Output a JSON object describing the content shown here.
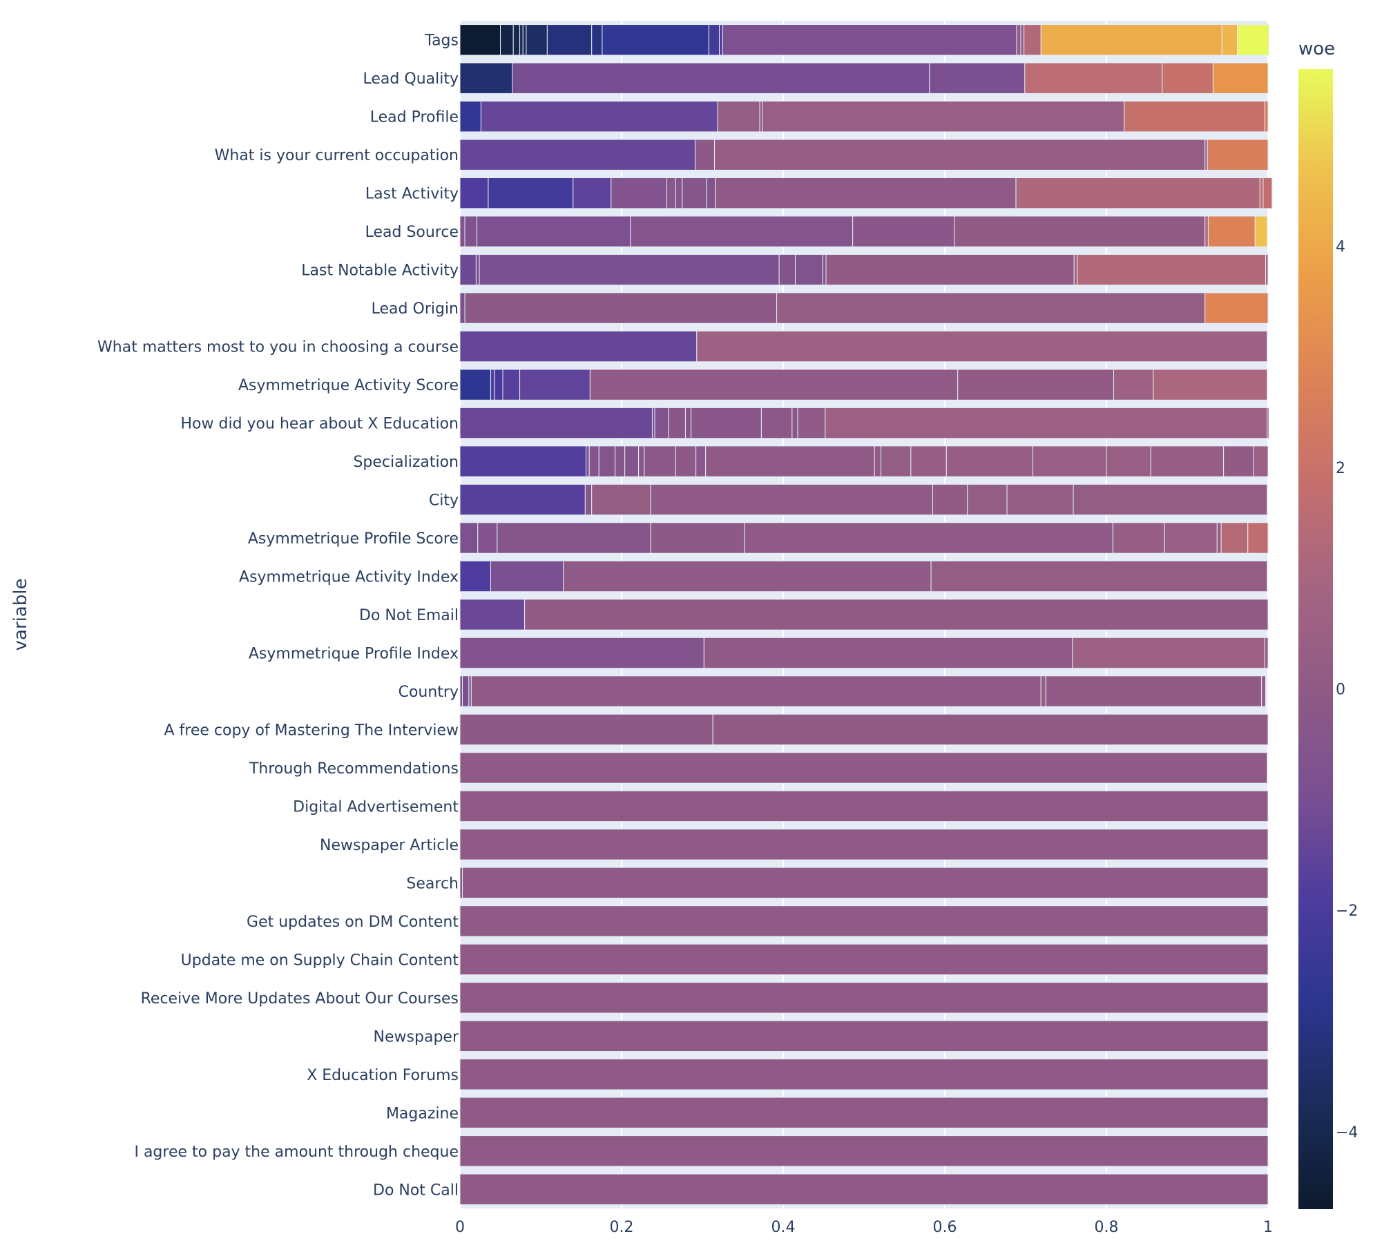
{
  "chart_data": {
    "type": "bar",
    "orientation": "horizontal-stacked",
    "ylabel": "variable",
    "xlim": [
      0,
      1
    ],
    "x_ticks": [
      "0",
      "0.2",
      "0.4",
      "0.6",
      "0.8",
      "1"
    ],
    "x_tick_values": [
      0,
      0.2,
      0.4,
      0.6,
      0.8,
      1
    ],
    "colorbar": {
      "title": "woe",
      "range": [
        -4.7,
        5.6
      ],
      "ticks": [
        "−4",
        "−2",
        "0",
        "2",
        "4"
      ],
      "tick_values": [
        -4,
        -2,
        0,
        2,
        4
      ],
      "colorscale": [
        "#0d1a2e",
        "#1b2c5a",
        "#2c3690",
        "#4e3c9e",
        "#7a4f92",
        "#8f5a85",
        "#a46582",
        "#c56f6d",
        "#dd8257",
        "#ec9e48",
        "#efc04e",
        "#e8fa5b"
      ]
    },
    "categories": [
      "Tags",
      "Lead Quality",
      "Lead Profile",
      "What is your current occupation",
      "Last Activity",
      "Lead Source",
      "Last Notable Activity",
      "Lead Origin",
      "What matters most to you in choosing a course",
      "Asymmetrique Activity Score",
      "How did you hear about X Education",
      "Specialization",
      "City",
      "Asymmetrique Profile Score",
      "Asymmetrique Activity Index",
      "Do Not Email",
      "Asymmetrique Profile Index",
      "Country",
      "A free copy of Mastering The Interview",
      "Through Recommendations",
      "Digital Advertisement",
      "Newspaper Article",
      "Search",
      "Get updates on DM Content",
      "Update me on Supply Chain Content",
      "Receive More Updates About Our Courses",
      "Newspaper",
      "X Education Forums",
      "Magazine",
      "I agree to pay the amount through cheque",
      "Do Not Call"
    ],
    "series": [
      {
        "category": "Tags",
        "segments": [
          [
            0.05,
            -4.6
          ],
          [
            0.016,
            -4.2
          ],
          [
            0.008,
            -4.0
          ],
          [
            0.004,
            -3.9
          ],
          [
            0.004,
            -3.8
          ],
          [
            0.026,
            -3.6
          ],
          [
            0.055,
            -3.2
          ],
          [
            0.013,
            -3.1
          ],
          [
            0.132,
            -2.7
          ],
          [
            0.013,
            -2.2
          ],
          [
            0.004,
            -1.9
          ],
          [
            0.364,
            -0.8
          ],
          [
            0.005,
            0.1
          ],
          [
            0.004,
            0.3
          ],
          [
            0.021,
            1.3
          ],
          [
            0.224,
            4.1
          ],
          [
            0.019,
            4.4
          ],
          [
            0.039,
            5.6
          ]
        ]
      },
      {
        "category": "Lead Quality",
        "segments": [
          [
            0.065,
            -3.4
          ],
          [
            0.516,
            -1.0
          ],
          [
            0.118,
            -0.9
          ],
          [
            0.17,
            1.6
          ],
          [
            0.063,
            1.9
          ],
          [
            0.068,
            3.4
          ]
        ]
      },
      {
        "category": "Lead Profile",
        "segments": [
          [
            0.026,
            -2.7
          ],
          [
            0.293,
            -1.4
          ],
          [
            0.052,
            0.2
          ],
          [
            0.003,
            0.1
          ],
          [
            0.448,
            0.4
          ],
          [
            0.174,
            1.9
          ],
          [
            0.004,
            2.6
          ]
        ]
      },
      {
        "category": "What is your current occupation",
        "segments": [
          [
            0.291,
            -1.4
          ],
          [
            0.024,
            -0.1
          ],
          [
            0.607,
            0.3
          ],
          [
            0.003,
            0.5
          ],
          [
            0.075,
            2.6
          ]
        ]
      },
      {
        "category": "Last Activity",
        "segments": [
          [
            0.035,
            -1.9
          ],
          [
            0.105,
            -2.2
          ],
          [
            0.047,
            -1.6
          ],
          [
            0.069,
            -0.6
          ],
          [
            0.011,
            -0.3
          ],
          [
            0.008,
            -0.5
          ],
          [
            0.03,
            -0.4
          ],
          [
            0.011,
            -0.5
          ],
          [
            0.372,
            0.0
          ],
          [
            0.302,
            1.2
          ],
          [
            0.004,
            1.7
          ],
          [
            0.011,
            1.7
          ]
        ]
      },
      {
        "category": "Lead Source",
        "segments": [
          [
            0.006,
            -0.6
          ],
          [
            0.015,
            -0.7
          ],
          [
            0.19,
            -0.8
          ],
          [
            0.275,
            -0.5
          ],
          [
            0.126,
            -0.3
          ],
          [
            0.31,
            0.1
          ],
          [
            0.004,
            1.3
          ],
          [
            0.058,
            2.8
          ],
          [
            0.015,
            4.7
          ]
        ]
      },
      {
        "category": "Last Notable Activity",
        "segments": [
          [
            0.02,
            -1.2
          ],
          [
            0.004,
            -0.8
          ],
          [
            0.371,
            -0.9
          ],
          [
            0.02,
            -0.6
          ],
          [
            0.034,
            -0.7
          ],
          [
            0.004,
            -0.4
          ],
          [
            0.307,
            0.1
          ],
          [
            0.004,
            0.9
          ],
          [
            0.233,
            1.3
          ],
          [
            0.003,
            1.1
          ]
        ]
      },
      {
        "category": "Lead Origin",
        "segments": [
          [
            0.006,
            -0.8
          ],
          [
            0.386,
            -0.1
          ],
          [
            0.53,
            0.2
          ],
          [
            0.078,
            2.9
          ]
        ]
      },
      {
        "category": "What matters most to you in choosing a course",
        "segments": [
          [
            0.293,
            -1.4
          ],
          [
            0.706,
            0.6
          ]
        ]
      },
      {
        "category": "Asymmetrique Activity Score",
        "segments": [
          [
            0.038,
            -2.8
          ],
          [
            0.005,
            -1.8
          ],
          [
            0.01,
            -2.1
          ],
          [
            0.021,
            -1.7
          ],
          [
            0.087,
            -1.5
          ],
          [
            0.455,
            0.0
          ],
          [
            0.193,
            0.1
          ],
          [
            0.049,
            0.6
          ],
          [
            0.141,
            1.1
          ]
        ]
      },
      {
        "category": "How did you hear about X Education",
        "segments": [
          [
            0.238,
            -1.3
          ],
          [
            0.003,
            -0.9
          ],
          [
            0.017,
            -0.6
          ],
          [
            0.021,
            -0.3
          ],
          [
            0.007,
            -0.4
          ],
          [
            0.087,
            -0.3
          ],
          [
            0.038,
            -0.2
          ],
          [
            0.007,
            -0.3
          ],
          [
            0.034,
            0.0
          ],
          [
            0.547,
            0.5
          ],
          [
            0.002,
            0.3
          ]
        ]
      },
      {
        "category": "Specialization",
        "segments": [
          [
            0.156,
            -1.8
          ],
          [
            0.004,
            -0.9
          ],
          [
            0.012,
            -0.6
          ],
          [
            0.02,
            -0.5
          ],
          [
            0.012,
            -0.4
          ],
          [
            0.017,
            -0.5
          ],
          [
            0.007,
            -0.3
          ],
          [
            0.039,
            -0.2
          ],
          [
            0.025,
            -0.1
          ],
          [
            0.012,
            -0.3
          ],
          [
            0.209,
            0.0
          ],
          [
            0.008,
            0.1
          ],
          [
            0.037,
            0.2
          ],
          [
            0.044,
            0.3
          ],
          [
            0.107,
            0.3
          ],
          [
            0.091,
            0.4
          ],
          [
            0.055,
            0.4
          ],
          [
            0.09,
            0.3
          ],
          [
            0.037,
            0.1
          ],
          [
            0.018,
            0.5
          ]
        ]
      },
      {
        "category": "City",
        "segments": [
          [
            0.155,
            -1.7
          ],
          [
            0.008,
            -0.3
          ],
          [
            0.073,
            0.2
          ],
          [
            0.349,
            0.0
          ],
          [
            0.043,
            0.1
          ],
          [
            0.049,
            0.2
          ],
          [
            0.082,
            0.2
          ],
          [
            0.24,
            0.2
          ]
        ]
      },
      {
        "category": "Asymmetrique Profile Score",
        "segments": [
          [
            0.022,
            -0.8
          ],
          [
            0.024,
            -0.6
          ],
          [
            0.19,
            -0.4
          ],
          [
            0.116,
            -0.1
          ],
          [
            0.456,
            0.0
          ],
          [
            0.064,
            0.3
          ],
          [
            0.065,
            0.4
          ],
          [
            0.005,
            0.4
          ],
          [
            0.033,
            1.4
          ],
          [
            0.025,
            1.7
          ]
        ]
      },
      {
        "category": "Asymmetrique Activity Index",
        "segments": [
          [
            0.038,
            -1.9
          ],
          [
            0.09,
            -0.9
          ],
          [
            0.455,
            0.0
          ],
          [
            0.416,
            0.2
          ]
        ]
      },
      {
        "category": "Do Not Email",
        "segments": [
          [
            0.08,
            -1.3
          ],
          [
            0.92,
            0.1
          ]
        ]
      },
      {
        "category": "Asymmetrique Profile Index",
        "segments": [
          [
            0.302,
            -0.6
          ],
          [
            0.456,
            0.0
          ],
          [
            0.238,
            0.6
          ],
          [
            0.004,
            0.3
          ]
        ]
      },
      {
        "category": "Country",
        "segments": [
          [
            0.003,
            -0.6
          ],
          [
            0.008,
            -0.9
          ],
          [
            0.003,
            -0.5
          ],
          [
            0.705,
            0.0
          ],
          [
            0.006,
            0.2
          ],
          [
            0.267,
            0.1
          ],
          [
            0.005,
            0.3
          ]
        ]
      },
      {
        "category": "A free copy of Mastering The Interview",
        "segments": [
          [
            0.313,
            -0.1
          ],
          [
            0.687,
            0.05
          ]
        ]
      },
      {
        "category": "Through Recommendations",
        "segments": [
          [
            0.999,
            0.0
          ]
        ]
      },
      {
        "category": "Digital Advertisement",
        "segments": [
          [
            1.0,
            0.0
          ]
        ]
      },
      {
        "category": "Newspaper Article",
        "segments": [
          [
            1.0,
            0.0
          ]
        ]
      },
      {
        "category": "Search",
        "segments": [
          [
            0.003,
            -0.4
          ],
          [
            0.997,
            0.0
          ]
        ]
      },
      {
        "category": "Get updates on DM Content",
        "segments": [
          [
            1.0,
            0.0
          ]
        ]
      },
      {
        "category": "Update me on Supply Chain Content",
        "segments": [
          [
            1.0,
            0.0
          ]
        ]
      },
      {
        "category": "Receive More Updates About Our Courses",
        "segments": [
          [
            1.0,
            0.0
          ]
        ]
      },
      {
        "category": "Newspaper",
        "segments": [
          [
            1.0,
            0.0
          ]
        ]
      },
      {
        "category": "X Education Forums",
        "segments": [
          [
            1.0,
            0.0
          ]
        ]
      },
      {
        "category": "Magazine",
        "segments": [
          [
            1.0,
            0.0
          ]
        ]
      },
      {
        "category": "I agree to pay the amount through cheque",
        "segments": [
          [
            1.0,
            0.0
          ]
        ]
      },
      {
        "category": "Do Not Call",
        "segments": [
          [
            1.0,
            0.0
          ]
        ]
      }
    ],
    "segment_format": [
      "width_fraction",
      "woe"
    ],
    "grid": true,
    "plot_background": "#e5ecf6"
  }
}
